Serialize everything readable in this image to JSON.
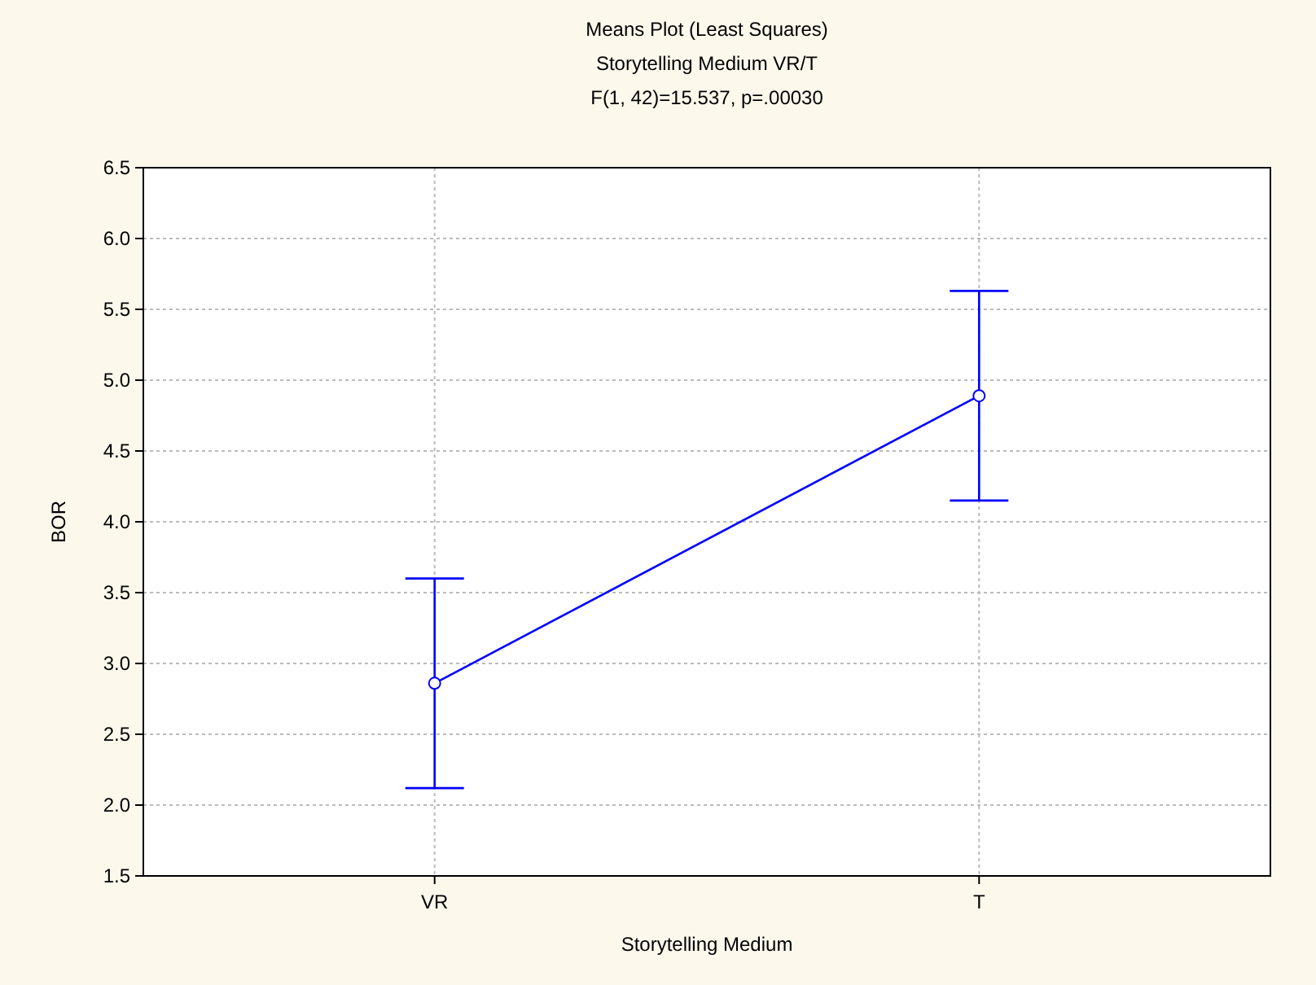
{
  "chart_data": {
    "type": "line",
    "title": "Means Plot (Least Squares)",
    "subtitle": "Storytelling Medium VR/T",
    "annotations": [
      "F(1, 42)=15.537, p=.00030"
    ],
    "xlabel": "Storytelling Medium",
    "ylabel": "BOR",
    "categories": [
      "VR",
      "T"
    ],
    "series": [
      {
        "color": "#0000ff",
        "values": [
          2.86,
          4.89
        ],
        "errors": [
          0.74,
          0.74
        ]
      }
    ],
    "ylim": [
      1.5,
      6.5
    ],
    "yticks": [
      {
        "value": 1.5,
        "label": "1.5"
      },
      {
        "value": 2,
        "label": "2.0"
      },
      {
        "value": 2.5,
        "label": "2.5"
      },
      {
        "value": 3,
        "label": "3.0"
      },
      {
        "value": 3.5,
        "label": "3.5"
      },
      {
        "value": 4,
        "label": "4.0"
      },
      {
        "value": 4.5,
        "label": "4.5"
      },
      {
        "value": 5,
        "label": "5.0"
      },
      {
        "value": 5.5,
        "label": "5.5"
      },
      {
        "value": 6,
        "label": "6.0"
      },
      {
        "value": 6.5,
        "label": "6.5"
      }
    ],
    "grid": true,
    "marker": "circle",
    "line_style": "solid"
  }
}
